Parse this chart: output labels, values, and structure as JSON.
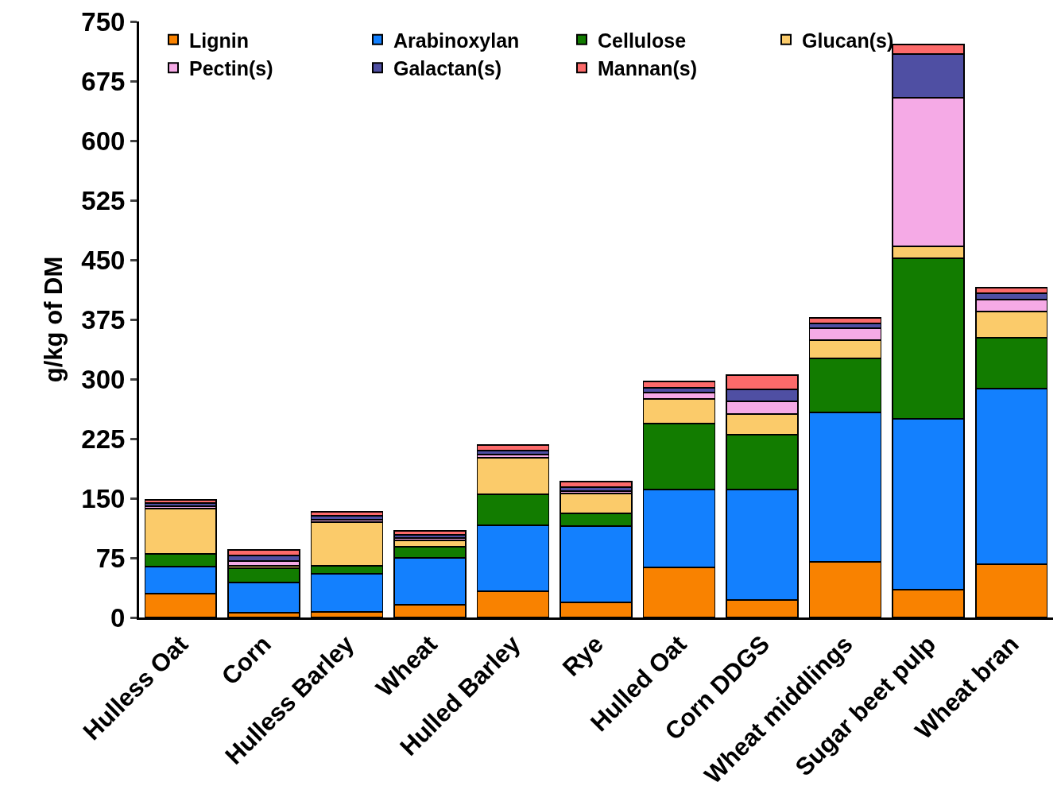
{
  "chart_data": {
    "type": "bar",
    "stacked": true,
    "ylabel": "g/kg of DM",
    "categories": [
      "Hulless Oat",
      "Corn",
      "Hulless Barley",
      "Wheat",
      "Hulled Barley",
      "Rye",
      "Hulled Oat",
      "Corn DDGS",
      "Wheat middlings",
      "Sugar beet pulp",
      "Wheat bran"
    ],
    "series": [
      {
        "name": "Lignin",
        "color": "#f98200",
        "values": [
          30,
          6,
          7,
          16,
          33,
          19,
          63,
          22,
          70,
          35,
          67
        ]
      },
      {
        "name": "Arabinoxylan",
        "color": "#1380fe",
        "values": [
          34,
          38,
          48,
          59,
          83,
          96,
          98,
          139,
          188,
          215,
          221
        ]
      },
      {
        "name": "Cellulose",
        "color": "#127c00",
        "values": [
          16,
          18,
          10,
          14,
          39,
          16,
          83,
          69,
          68,
          202,
          64
        ]
      },
      {
        "name": "Glucan(s)",
        "color": "#fbcb6a",
        "values": [
          57,
          3,
          55,
          8,
          46,
          25,
          31,
          26,
          23,
          15,
          33
        ]
      },
      {
        "name": "Pectin(s)",
        "color": "#f5aae6",
        "values": [
          3,
          6,
          3,
          3,
          4,
          3,
          8,
          16,
          15,
          187,
          15
        ]
      },
      {
        "name": "Galactan(s)",
        "color": "#4f4fa3",
        "values": [
          4,
          7,
          5,
          4,
          5,
          5,
          6,
          15,
          6,
          55,
          8
        ]
      },
      {
        "name": "Mannan(s)",
        "color": "#fc6a6a",
        "values": [
          4,
          7,
          5,
          5,
          7,
          7,
          8,
          18,
          7,
          12,
          7
        ]
      }
    ],
    "ylim": [
      0,
      750
    ],
    "yticks": [
      0,
      75,
      150,
      225,
      300,
      375,
      450,
      525,
      600,
      675,
      750
    ],
    "legend": "top left"
  }
}
